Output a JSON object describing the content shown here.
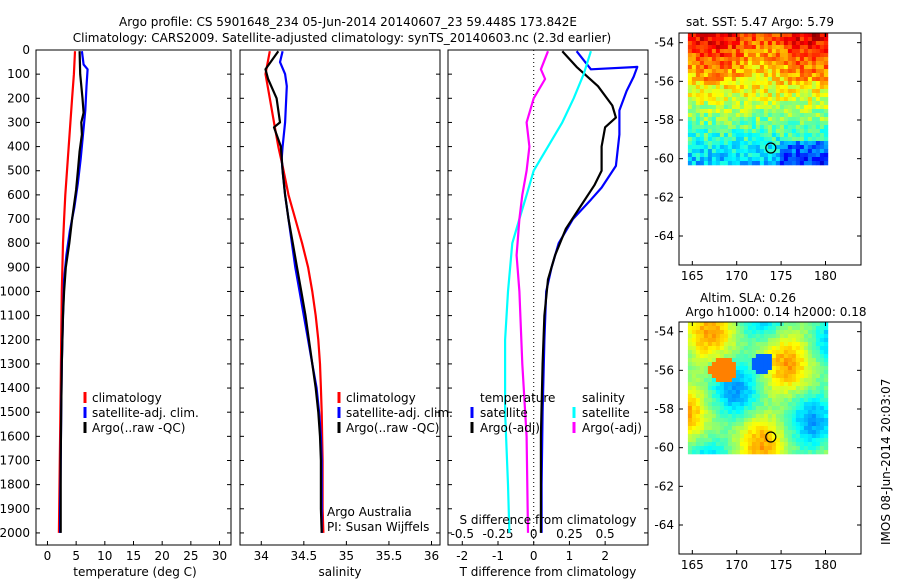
{
  "header": {
    "line1": "Argo profile: CS 5901648_234 05-Jun-2014 20140607_23 59.448S 173.842E",
    "line2": "Climatology: CARS2009. Satellite-adjusted climatology: synTS_20140603.nc (2.3d earlier)"
  },
  "side_label": "IMOS 08-Jun-2014 20:03:07",
  "colors": {
    "climatology": "#ff0000",
    "satellite": "#0000ff",
    "argo": "#000000",
    "sat_s": "#00ffff",
    "argo_s": "#ff00ff"
  },
  "chart_data": [
    {
      "type": "line",
      "xlabel": "temperature (deg C)",
      "xlim": [
        -2,
        32
      ],
      "xticks": [
        "0",
        "5",
        "10",
        "15",
        "20",
        "25",
        "30"
      ],
      "ylim": [
        0,
        2050
      ],
      "yticks": [
        "0",
        "100",
        "200",
        "300",
        "400",
        "500",
        "600",
        "700",
        "800",
        "900",
        "1000",
        "1100",
        "1200",
        "1300",
        "1400",
        "1500",
        "1600",
        "1700",
        "1800",
        "1900",
        "2000"
      ],
      "legend": [
        "climatology",
        "satellite-adj. clim.",
        "Argo(..raw -QC)"
      ],
      "series": [
        {
          "key": "climatology",
          "values": [
            [
              4.8,
              5
            ],
            [
              4.6,
              100
            ],
            [
              4.3,
              200
            ],
            [
              4.0,
              300
            ],
            [
              3.7,
              400
            ],
            [
              3.4,
              500
            ],
            [
              3.1,
              600
            ],
            [
              2.9,
              700
            ],
            [
              2.7,
              800
            ],
            [
              2.6,
              900
            ],
            [
              2.5,
              1000
            ],
            [
              2.4,
              1200
            ],
            [
              2.3,
              1400
            ],
            [
              2.2,
              1600
            ],
            [
              2.1,
              1800
            ],
            [
              2.0,
              2000
            ]
          ]
        },
        {
          "key": "satellite",
          "values": [
            [
              6.0,
              5
            ],
            [
              6.3,
              60
            ],
            [
              7.0,
              80
            ],
            [
              6.8,
              150
            ],
            [
              6.6,
              250
            ],
            [
              6.2,
              350
            ],
            [
              5.8,
              450
            ],
            [
              5.3,
              550
            ],
            [
              4.7,
              650
            ],
            [
              3.9,
              750
            ],
            [
              3.3,
              850
            ],
            [
              2.9,
              950
            ],
            [
              2.7,
              1100
            ],
            [
              2.5,
              1300
            ],
            [
              2.4,
              1500
            ],
            [
              2.3,
              1700
            ],
            [
              2.2,
              1900
            ],
            [
              2.2,
              2000
            ]
          ]
        },
        {
          "key": "argo",
          "values": [
            [
              5.6,
              5
            ],
            [
              5.7,
              100
            ],
            [
              6.1,
              200
            ],
            [
              6.3,
              260
            ],
            [
              5.9,
              300
            ],
            [
              6.0,
              350
            ],
            [
              5.6,
              420
            ],
            [
              5.3,
              500
            ],
            [
              5.0,
              580
            ],
            [
              4.3,
              700
            ],
            [
              3.8,
              800
            ],
            [
              3.2,
              900
            ],
            [
              2.9,
              1000
            ],
            [
              2.7,
              1100
            ],
            [
              2.5,
              1300
            ],
            [
              2.4,
              1500
            ],
            [
              2.3,
              1700
            ],
            [
              2.3,
              1900
            ],
            [
              2.3,
              2000
            ]
          ]
        }
      ]
    },
    {
      "type": "line",
      "xlabel": "salinity",
      "xlim": [
        33.75,
        36.1
      ],
      "xticks": [
        "34",
        "34.5",
        "35",
        "35.5",
        "36"
      ],
      "ylim": [
        0,
        2050
      ],
      "legend": [
        "climatology",
        "satellite-adj. clim.",
        "Argo(..raw -QC)"
      ],
      "annotation": [
        "Argo Australia",
        "PI: Susan Wijffels"
      ],
      "series": [
        {
          "key": "climatology",
          "values": [
            [
              34.1,
              5
            ],
            [
              34.05,
              100
            ],
            [
              34.1,
              200
            ],
            [
              34.15,
              300
            ],
            [
              34.2,
              400
            ],
            [
              34.25,
              480
            ],
            [
              34.32,
              600
            ],
            [
              34.4,
              700
            ],
            [
              34.48,
              800
            ],
            [
              34.55,
              900
            ],
            [
              34.6,
              1000
            ],
            [
              34.64,
              1100
            ],
            [
              34.67,
              1200
            ],
            [
              34.69,
              1300
            ],
            [
              34.7,
              1400
            ],
            [
              34.71,
              1500
            ],
            [
              34.72,
              1700
            ],
            [
              34.72,
              1900
            ],
            [
              34.73,
              2000
            ]
          ]
        },
        {
          "key": "satellite",
          "values": [
            [
              34.25,
              5
            ],
            [
              34.22,
              50
            ],
            [
              34.28,
              100
            ],
            [
              34.3,
              150
            ],
            [
              34.28,
              300
            ],
            [
              34.25,
              400
            ],
            [
              34.24,
              450
            ],
            [
              34.25,
              500
            ],
            [
              34.28,
              600
            ],
            [
              34.32,
              700
            ],
            [
              34.36,
              800
            ],
            [
              34.4,
              900
            ],
            [
              34.45,
              1000
            ],
            [
              34.5,
              1100
            ],
            [
              34.55,
              1200
            ],
            [
              34.6,
              1300
            ],
            [
              34.65,
              1400
            ],
            [
              34.68,
              1500
            ],
            [
              34.7,
              1600
            ],
            [
              34.71,
              1700
            ],
            [
              34.71,
              1900
            ],
            [
              34.71,
              2000
            ]
          ]
        },
        {
          "key": "argo",
          "values": [
            [
              34.2,
              5
            ],
            [
              34.05,
              80
            ],
            [
              34.08,
              120
            ],
            [
              34.18,
              200
            ],
            [
              34.22,
              300
            ],
            [
              34.15,
              320
            ],
            [
              34.23,
              400
            ],
            [
              34.25,
              500
            ],
            [
              34.28,
              600
            ],
            [
              34.32,
              700
            ],
            [
              34.37,
              800
            ],
            [
              34.42,
              900
            ],
            [
              34.47,
              1000
            ],
            [
              34.52,
              1100
            ],
            [
              34.56,
              1200
            ],
            [
              34.6,
              1300
            ],
            [
              34.64,
              1400
            ],
            [
              34.67,
              1500
            ],
            [
              34.69,
              1600
            ],
            [
              34.7,
              1700
            ],
            [
              34.7,
              1900
            ],
            [
              34.71,
              2000
            ]
          ]
        }
      ]
    },
    {
      "type": "line",
      "xlabel": "T difference from climatology",
      "xlabel_top": "S difference from climatology",
      "xlim": [
        -2.4,
        3.2
      ],
      "xticks": [
        "-2",
        "-1",
        "0",
        "1",
        "2"
      ],
      "xticks_top": [
        "-0.5",
        "-0.25",
        "0",
        "0.25",
        "0.5"
      ],
      "ylim": [
        0,
        2050
      ],
      "legend_left": {
        "title": "temperature",
        "items": [
          "satellite",
          "Argo(-adj)"
        ]
      },
      "legend_right": {
        "title": "salinity",
        "items": [
          "satellite",
          "Argo(-adj)"
        ]
      },
      "series": [
        {
          "key": "satellite",
          "values": [
            [
              1.2,
              5
            ],
            [
              1.6,
              80
            ],
            [
              2.9,
              70
            ],
            [
              2.8,
              110
            ],
            [
              2.6,
              170
            ],
            [
              2.4,
              250
            ],
            [
              2.4,
              350
            ],
            [
              2.3,
              480
            ],
            [
              1.9,
              570
            ],
            [
              1.6,
              620
            ],
            [
              1.1,
              700
            ],
            [
              0.7,
              800
            ],
            [
              0.5,
              900
            ],
            [
              0.35,
              1000
            ],
            [
              0.3,
              1200
            ],
            [
              0.25,
              1500
            ],
            [
              0.22,
              1800
            ],
            [
              0.22,
              2000
            ]
          ]
        },
        {
          "key": "argo",
          "values": [
            [
              0.8,
              5
            ],
            [
              1.2,
              70
            ],
            [
              1.8,
              150
            ],
            [
              2.2,
              230
            ],
            [
              2.3,
              280
            ],
            [
              2.0,
              320
            ],
            [
              1.9,
              400
            ],
            [
              1.9,
              500
            ],
            [
              1.7,
              560
            ],
            [
              1.3,
              650
            ],
            [
              0.9,
              740
            ],
            [
              0.6,
              850
            ],
            [
              0.4,
              950
            ],
            [
              0.3,
              1100
            ],
            [
              0.25,
              1300
            ],
            [
              0.2,
              1600
            ],
            [
              0.2,
              2000
            ]
          ]
        },
        {
          "key": "sat_s",
          "values": [
            [
              0.4,
              5
            ],
            [
              0.35,
              100
            ],
            [
              0.28,
              200
            ],
            [
              0.2,
              300
            ],
            [
              0.1,
              400
            ],
            [
              0.0,
              500
            ],
            [
              -0.05,
              600
            ],
            [
              -0.1,
              700
            ],
            [
              -0.15,
              800
            ],
            [
              -0.18,
              1000
            ],
            [
              -0.2,
              1200
            ],
            [
              -0.2,
              1500
            ],
            [
              -0.18,
              1800
            ],
            [
              -0.17,
              2000
            ]
          ]
        },
        {
          "key": "argo_s",
          "values": [
            [
              0.1,
              5
            ],
            [
              0.05,
              80
            ],
            [
              0.08,
              120
            ],
            [
              0.0,
              200
            ],
            [
              -0.05,
              300
            ],
            [
              -0.03,
              400
            ],
            [
              -0.05,
              500
            ],
            [
              -0.08,
              600
            ],
            [
              -0.1,
              700
            ],
            [
              -0.12,
              850
            ],
            [
              -0.1,
              1000
            ],
            [
              -0.08,
              1300
            ],
            [
              -0.05,
              1600
            ],
            [
              -0.04,
              2000
            ]
          ]
        }
      ]
    },
    {
      "type": "heatmap",
      "title": "sat. SST: 5.47 Argo: 5.79",
      "xlim": [
        163.5,
        184
      ],
      "ylim": [
        -65.5,
        -53.5
      ],
      "xticks": [
        "165",
        "170",
        "175",
        "180"
      ],
      "yticks": [
        "-54",
        "-56",
        "-58",
        "-60",
        "-62",
        "-64"
      ],
      "extent": {
        "x": [
          164.5,
          180
        ],
        "y": [
          -60.2,
          -53.5
        ]
      },
      "marker": {
        "x": 173.842,
        "y": -59.448
      }
    },
    {
      "type": "heatmap",
      "title": "Altim. SLA: 0.26",
      "subtitle": "Argo h1000: 0.14 h2000: 0.18",
      "xlim": [
        163.5,
        184
      ],
      "ylim": [
        -65.5,
        -53.5
      ],
      "xticks": [
        "165",
        "170",
        "175",
        "180"
      ],
      "yticks": [
        "-54",
        "-56",
        "-58",
        "-60",
        "-62",
        "-64"
      ],
      "extent": {
        "x": [
          164.5,
          180
        ],
        "y": [
          -60.2,
          -53.5
        ]
      },
      "marker": {
        "x": 173.842,
        "y": -59.448
      }
    }
  ]
}
